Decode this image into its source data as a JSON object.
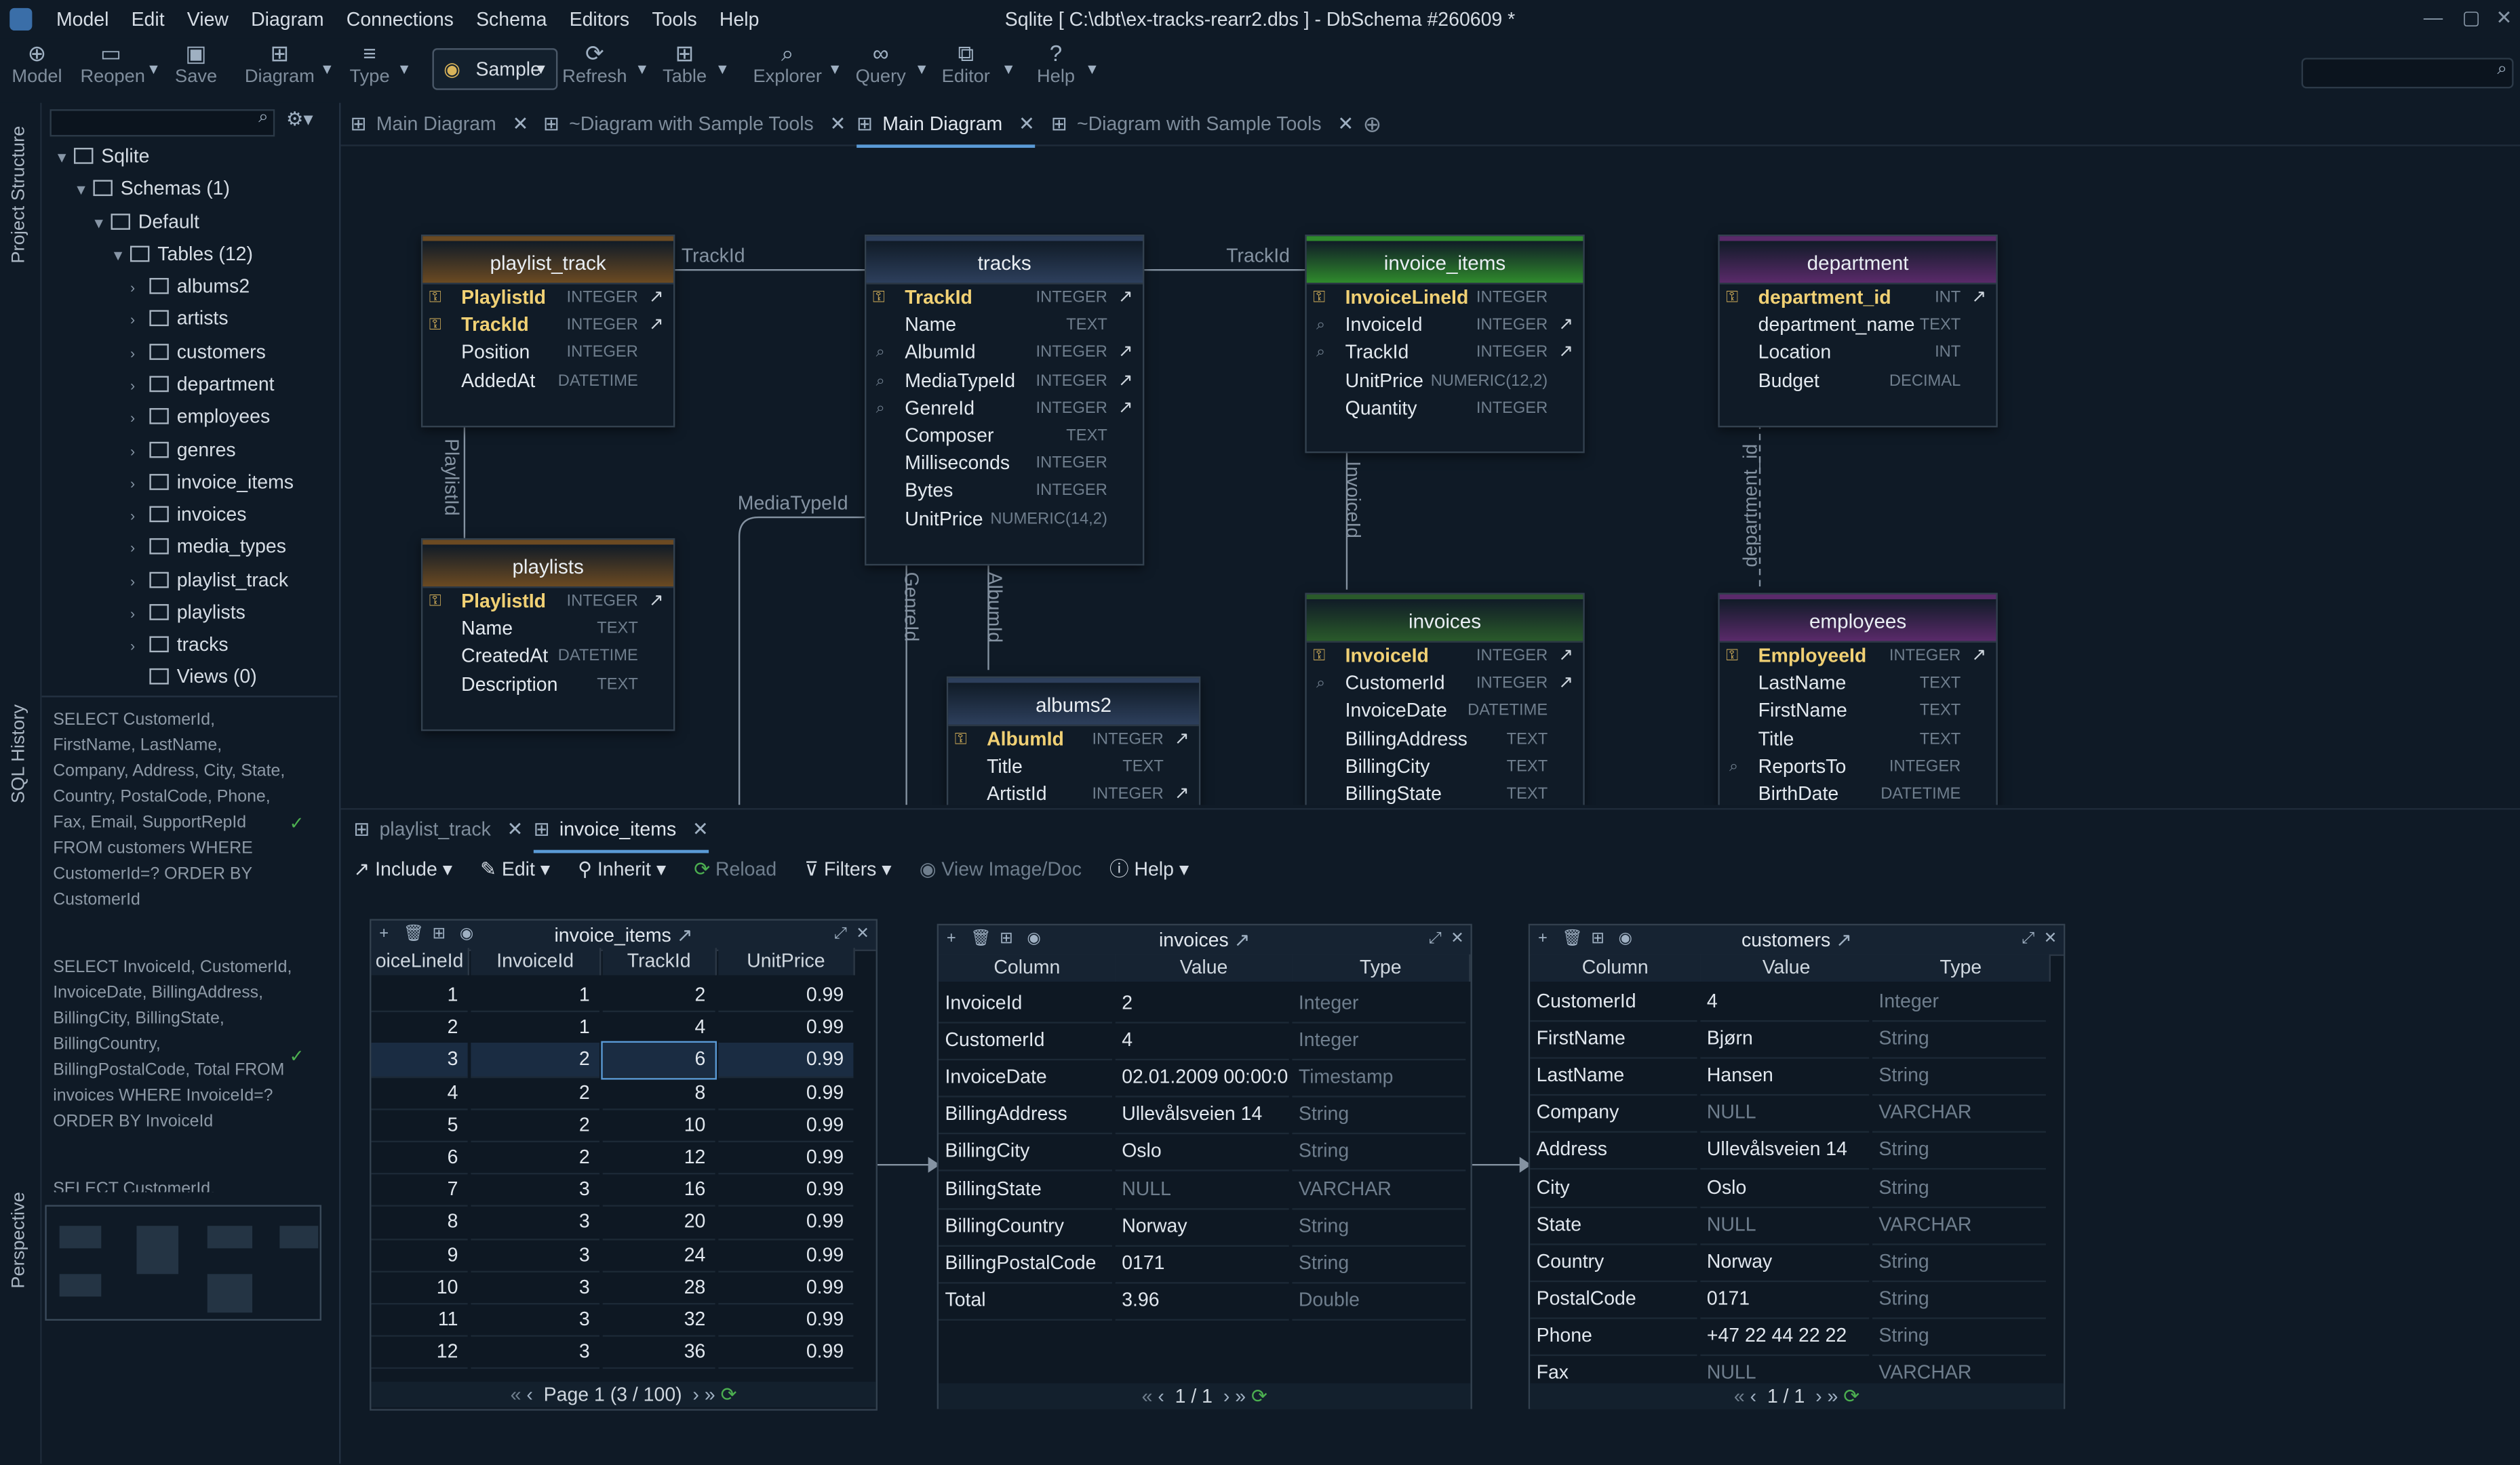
{
  "window": {
    "title": "Sqlite [ C:\\dbt\\ex-tracks-rearr2.dbs ] - DbSchema #260609 *"
  },
  "menu": [
    "Model",
    "Edit",
    "View",
    "Diagram",
    "Connections",
    "Schema",
    "Editors",
    "Tools",
    "Help"
  ],
  "toolbar": {
    "model": "Model",
    "reopen": "Reopen",
    "save": "Save",
    "diagram": "Diagram",
    "type": "Type",
    "sample": "Sample",
    "refresh": "Refresh",
    "table": "Table",
    "explorer": "Explorer",
    "query": "Query",
    "editor": "Editor",
    "help": "Help"
  },
  "side_tabs": {
    "project": "Project Structure",
    "history": "SQL History",
    "perspective": "Perspective"
  },
  "tree": {
    "root": "Sqlite",
    "schemas": "Schemas (1)",
    "default": "Default",
    "tables": "Tables (12)",
    "table_list": [
      "albums2",
      "artists",
      "customers",
      "department",
      "employees",
      "genres",
      "invoice_items",
      "invoices",
      "media_types",
      "playlist_track",
      "playlists",
      "tracks"
    ],
    "views": "Views (0)"
  },
  "history": [
    "SELECT CustomerId, FirstName, LastName, Company, Address, City, State, Country, PostalCode, Phone, Fax, Email, SupportRepId FROM customers WHERE CustomerId=? ORDER BY CustomerId",
    "SELECT InvoiceId, CustomerId, InvoiceDate, BillingAddress, BillingCity, BillingState, BillingCountry, BillingPostalCode, Total FROM invoices WHERE InvoiceId=? ORDER BY InvoiceId",
    "SELECT CustomerId,"
  ],
  "diagram_tabs": [
    "Main Diagram",
    "~Diagram with Sample Tools",
    "Main Diagram",
    "~Diagram with Sample Tools"
  ],
  "entities": {
    "playlist_track": {
      "title": "playlist_track",
      "color": "#6b4a22",
      "cols": [
        [
          "PlaylistId",
          "INTEGER"
        ],
        [
          "TrackId",
          "INTEGER"
        ],
        [
          "Position",
          "INTEGER"
        ],
        [
          "AddedAt",
          "DATETIME"
        ]
      ]
    },
    "playlists": {
      "title": "playlists",
      "color": "#6b4a22",
      "cols": [
        [
          "PlaylistId",
          "INTEGER"
        ],
        [
          "Name",
          "TEXT"
        ],
        [
          "CreatedAt",
          "DATETIME"
        ],
        [
          "Description",
          "TEXT"
        ]
      ]
    },
    "tracks": {
      "title": "tracks",
      "color": "#2d3f5c",
      "cols": [
        [
          "TrackId",
          "INTEGER"
        ],
        [
          "Name",
          "TEXT"
        ],
        [
          "AlbumId",
          "INTEGER"
        ],
        [
          "MediaTypeId",
          "INTEGER"
        ],
        [
          "GenreId",
          "INTEGER"
        ],
        [
          "Composer",
          "TEXT"
        ],
        [
          "Milliseconds",
          "INTEGER"
        ],
        [
          "Bytes",
          "INTEGER"
        ],
        [
          "UnitPrice",
          "NUMERIC(14,2)"
        ]
      ]
    },
    "albums2": {
      "title": "albums2",
      "color": "#2d3f5c",
      "cols": [
        [
          "AlbumId",
          "INTEGER"
        ],
        [
          "Title",
          "TEXT"
        ],
        [
          "ArtistId",
          "INTEGER"
        ]
      ]
    },
    "invoice_items": {
      "title": "invoice_items",
      "color": "#2f8a2c",
      "cols": [
        [
          "InvoiceLineId",
          "INTEGER"
        ],
        [
          "InvoiceId",
          "INTEGER"
        ],
        [
          "TrackId",
          "INTEGER"
        ],
        [
          "UnitPrice",
          "NUMERIC(12,2)"
        ],
        [
          "Quantity",
          "INTEGER"
        ]
      ]
    },
    "invoices": {
      "title": "invoices",
      "color": "#2a5a2a",
      "cols": [
        [
          "InvoiceId",
          "INTEGER"
        ],
        [
          "CustomerId",
          "INTEGER"
        ],
        [
          "InvoiceDate",
          "DATETIME"
        ],
        [
          "BillingAddress",
          "TEXT"
        ],
        [
          "BillingCity",
          "TEXT"
        ],
        [
          "BillingState",
          "TEXT"
        ]
      ]
    },
    "department": {
      "title": "department",
      "color": "#5a2a6a",
      "cols": [
        [
          "department_id",
          "INT"
        ],
        [
          "department_name",
          "TEXT"
        ],
        [
          "Location",
          "INT"
        ],
        [
          "Budget",
          "DECIMAL"
        ]
      ]
    },
    "employees": {
      "title": "employees",
      "color": "#5a2a6a",
      "cols": [
        [
          "EmployeeId",
          "INTEGER"
        ],
        [
          "LastName",
          "TEXT"
        ],
        [
          "FirstName",
          "TEXT"
        ],
        [
          "Title",
          "TEXT"
        ],
        [
          "ReportsTo",
          "INTEGER"
        ],
        [
          "BirthDate",
          "DATETIME"
        ]
      ]
    }
  },
  "relation_labels": {
    "trackid_left": "TrackId",
    "trackid_right": "TrackId",
    "playlistid": "PlaylistId",
    "mediatypeid": "MediaTypeId",
    "genreid": "GenreId",
    "albumid": "AlbumId",
    "invoiceid": "InvoiceId",
    "department_id": "department_id"
  },
  "bottom_tabs": [
    "playlist_track",
    "invoice_items"
  ],
  "bottom_toolbar": {
    "include": "Include",
    "edit": "Edit",
    "inherit": "Inherit",
    "reload": "Reload",
    "filters": "Filters",
    "view_image": "View Image/Doc",
    "help": "Help"
  },
  "grid_invoice_items": {
    "title": "invoice_items",
    "headers": [
      "oiceLineId",
      "InvoiceId",
      "TrackId",
      "UnitPrice"
    ],
    "rows": [
      [
        "1",
        "1",
        "2",
        "0.99"
      ],
      [
        "2",
        "1",
        "4",
        "0.99"
      ],
      [
        "3",
        "2",
        "6",
        "0.99"
      ],
      [
        "4",
        "2",
        "8",
        "0.99"
      ],
      [
        "5",
        "2",
        "10",
        "0.99"
      ],
      [
        "6",
        "2",
        "12",
        "0.99"
      ],
      [
        "7",
        "3",
        "16",
        "0.99"
      ],
      [
        "8",
        "3",
        "20",
        "0.99"
      ],
      [
        "9",
        "3",
        "24",
        "0.99"
      ],
      [
        "10",
        "3",
        "28",
        "0.99"
      ],
      [
        "11",
        "3",
        "32",
        "0.99"
      ],
      [
        "12",
        "3",
        "36",
        "0.99"
      ]
    ],
    "pager": "Page 1 (3 / 100)"
  },
  "grid_invoices": {
    "title": "invoices",
    "headers": [
      "Column",
      "Value",
      "Type"
    ],
    "rows": [
      [
        "InvoiceId",
        "2",
        "Integer"
      ],
      [
        "CustomerId",
        "4",
        "Integer"
      ],
      [
        "InvoiceDate",
        "02.01.2009 00:00:0...",
        "Timestamp"
      ],
      [
        "BillingAddress",
        "Ullevålsveien 14",
        "String"
      ],
      [
        "BillingCity",
        "Oslo",
        "String"
      ],
      [
        "BillingState",
        "NULL",
        "VARCHAR"
      ],
      [
        "BillingCountry",
        "Norway",
        "String"
      ],
      [
        "BillingPostalCode",
        "0171",
        "String"
      ],
      [
        "Total",
        "3.96",
        "Double"
      ]
    ],
    "pager": "1 / 1"
  },
  "grid_customers": {
    "title": "customers",
    "headers": [
      "Column",
      "Value",
      "Type"
    ],
    "rows": [
      [
        "CustomerId",
        "4",
        "Integer"
      ],
      [
        "FirstName",
        "Bjørn",
        "String"
      ],
      [
        "LastName",
        "Hansen",
        "String"
      ],
      [
        "Company",
        "NULL",
        "VARCHAR"
      ],
      [
        "Address",
        "Ullevålsveien 14",
        "String"
      ],
      [
        "City",
        "Oslo",
        "String"
      ],
      [
        "State",
        "NULL",
        "VARCHAR"
      ],
      [
        "Country",
        "Norway",
        "String"
      ],
      [
        "PostalCode",
        "0171",
        "String"
      ],
      [
        "Phone",
        "+47 22 44 22 22",
        "String"
      ],
      [
        "Fax",
        "NULL",
        "VARCHAR"
      ]
    ],
    "pager": "1 / 1"
  }
}
